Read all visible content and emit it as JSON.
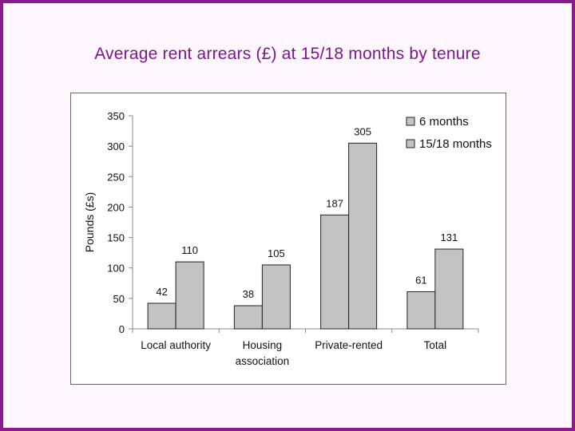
{
  "title": "Average rent arrears (£) at 15/18 months by tenure",
  "colors": {
    "border": "#8b1a8b",
    "title": "#7a1a8a",
    "bar_6": "#c3c3c3",
    "bar_15": "#c3c3c3"
  },
  "chart_data": {
    "type": "bar",
    "categories": [
      [
        "Local authority"
      ],
      [
        "Housing",
        "association"
      ],
      [
        "Private-rented"
      ],
      [
        "Total"
      ]
    ],
    "series": [
      {
        "name": "6 months",
        "values": [
          42,
          38,
          187,
          61
        ]
      },
      {
        "name": "15/18 months",
        "values": [
          110,
          105,
          305,
          131
        ]
      }
    ],
    "xlabel": "",
    "ylabel": "Pounds (£s)",
    "ylim": [
      0,
      350
    ],
    "yticks": [
      0,
      50,
      100,
      150,
      200,
      250,
      300,
      350
    ],
    "data_labels": true,
    "grid": false,
    "legend": "top-right"
  }
}
